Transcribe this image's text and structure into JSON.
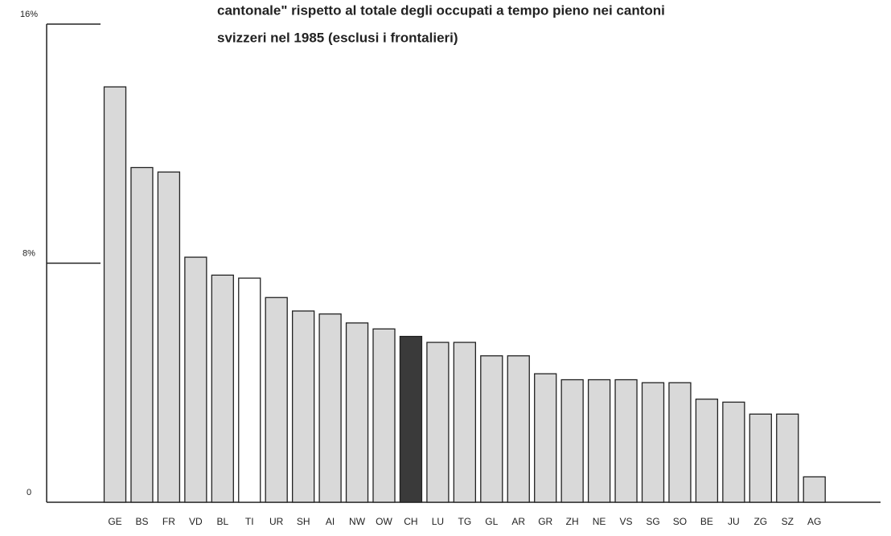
{
  "chart_data": {
    "type": "bar",
    "title_lines": [
      "cantonale\" rispetto al totale degli occupati a tempo pieno nei cantoni",
      "svizzeri nel 1985 (esclusi i frontalieri)"
    ],
    "categories": [
      "GE",
      "BS",
      "FR",
      "VD",
      "BL",
      "TI",
      "UR",
      "SH",
      "AI",
      "NW",
      "OW",
      "CH",
      "LU",
      "TG",
      "GL",
      "AR",
      "GR",
      "ZH",
      "NE",
      "VS",
      "SG",
      "SO",
      "BE",
      "JU",
      "ZG",
      "SZ",
      "AG"
    ],
    "values": [
      13.9,
      11.2,
      11.05,
      8.2,
      7.6,
      7.5,
      6.85,
      6.4,
      6.3,
      6.0,
      5.8,
      5.55,
      5.35,
      5.35,
      4.9,
      4.9,
      4.3,
      4.1,
      4.1,
      4.1,
      4.0,
      4.0,
      3.45,
      3.35,
      2.95,
      2.95,
      0.85
    ],
    "colors": [
      "#d9d9d9",
      "#d9d9d9",
      "#d9d9d9",
      "#d9d9d9",
      "#d9d9d9",
      "#ffffff",
      "#d9d9d9",
      "#d9d9d9",
      "#d9d9d9",
      "#d9d9d9",
      "#d9d9d9",
      "#3a3a3a",
      "#d9d9d9",
      "#d9d9d9",
      "#d9d9d9",
      "#d9d9d9",
      "#d9d9d9",
      "#d9d9d9",
      "#d9d9d9",
      "#d9d9d9",
      "#d9d9d9",
      "#d9d9d9",
      "#d9d9d9",
      "#d9d9d9",
      "#d9d9d9",
      "#d9d9d9",
      "#d9d9d9"
    ],
    "ylim": [
      0,
      16
    ],
    "yticks": [
      0,
      {
        "value": 8,
        "label": "8%"
      },
      {
        "value": 16,
        "label": "16%"
      }
    ],
    "grid": false
  }
}
